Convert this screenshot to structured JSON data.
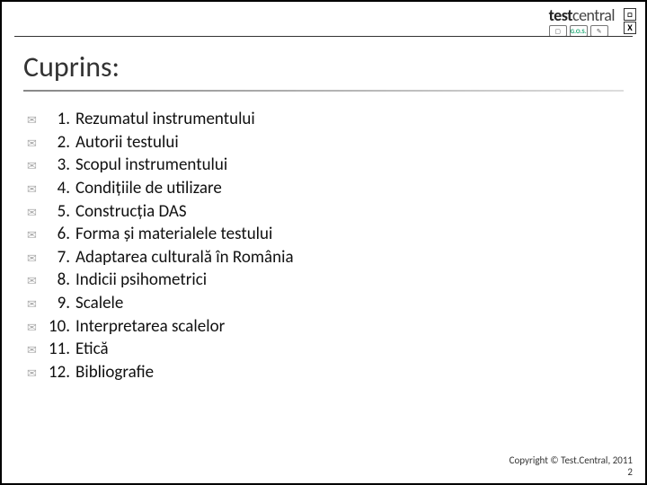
{
  "brand": {
    "prefix": "test",
    "suffix": "central"
  },
  "smallLogos": {
    "a": "▢",
    "b": "G.O.S.",
    "c": "✎"
  },
  "cornerBoxes": {
    "top": "□",
    "bottom": "X"
  },
  "title": "Cuprins:",
  "bulletGlyph": "✉",
  "toc": [
    {
      "n": "1.",
      "t": "Rezumatul instrumentului"
    },
    {
      "n": "2.",
      "t": "Autorii testului"
    },
    {
      "n": "3.",
      "t": "Scopul instrumentului"
    },
    {
      "n": "4.",
      "t": "Condițiile de utilizare"
    },
    {
      "n": "5.",
      "t": "Construcția DAS"
    },
    {
      "n": "6.",
      "t": "Forma și materialele testului"
    },
    {
      "n": "7.",
      "t": "Adaptarea culturală în România"
    },
    {
      "n": "8.",
      "t": "Indicii psihometrici"
    },
    {
      "n": "9.",
      "t": "Scalele"
    },
    {
      "n": "10.",
      "t": "Interpretarea scalelor"
    },
    {
      "n": "11.",
      "t": "Etică"
    },
    {
      "n": "12.",
      "t": "Bibliografie"
    }
  ],
  "footer": {
    "copyright": "Copyright © Test.Central, 2011",
    "page": "2"
  },
  "colors": {
    "text": "#111111",
    "title": "#333333",
    "bullet": "#aaaaaa",
    "border": "#000000",
    "hr": "#333333"
  },
  "fonts": {
    "body": 19,
    "title": 32,
    "footer": 11
  }
}
